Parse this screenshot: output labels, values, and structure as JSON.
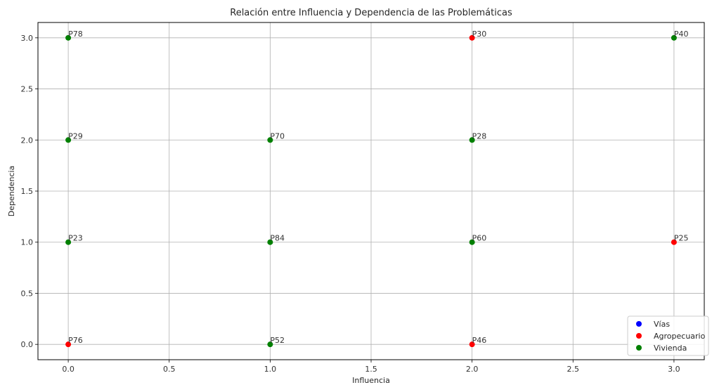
{
  "chart_data": {
    "type": "scatter",
    "title": "Relación entre Influencia y Dependencia de las Problemáticas",
    "xlabel": "Influencia",
    "ylabel": "Dependencia",
    "xlim": [
      -0.15,
      3.15
    ],
    "ylim": [
      -0.15,
      3.15
    ],
    "xticks": [
      0.0,
      0.5,
      1.0,
      1.5,
      2.0,
      2.5,
      3.0
    ],
    "yticks": [
      0.0,
      0.5,
      1.0,
      1.5,
      2.0,
      2.5,
      3.0
    ],
    "xtick_labels": [
      "0.0",
      "0.5",
      "1.0",
      "1.5",
      "2.0",
      "2.5",
      "3.0"
    ],
    "ytick_labels": [
      "0.0",
      "0.5",
      "1.0",
      "1.5",
      "2.0",
      "2.5",
      "3.0"
    ],
    "grid": true,
    "legend_position": "bottom-right",
    "series": [
      {
        "name": "Vías",
        "color": "#0000ff",
        "points": []
      },
      {
        "name": "Agropecuario",
        "color": "#ff0000",
        "points": [
          {
            "x": 2,
            "y": 3,
            "label": "P30"
          },
          {
            "x": 3,
            "y": 1,
            "label": "P25"
          },
          {
            "x": 0,
            "y": 0,
            "label": "P76"
          },
          {
            "x": 2,
            "y": 0,
            "label": "P46"
          }
        ]
      },
      {
        "name": "Vivienda",
        "color": "#008000",
        "points": [
          {
            "x": 0,
            "y": 3,
            "label": "P78"
          },
          {
            "x": 3,
            "y": 3,
            "label": "P40"
          },
          {
            "x": 0,
            "y": 2,
            "label": "P29"
          },
          {
            "x": 1,
            "y": 2,
            "label": "P70"
          },
          {
            "x": 2,
            "y": 2,
            "label": "P28"
          },
          {
            "x": 0,
            "y": 1,
            "label": "P23"
          },
          {
            "x": 1,
            "y": 1,
            "label": "P84"
          },
          {
            "x": 2,
            "y": 1,
            "label": "P60"
          },
          {
            "x": 1,
            "y": 0,
            "label": "P52"
          }
        ]
      }
    ]
  }
}
